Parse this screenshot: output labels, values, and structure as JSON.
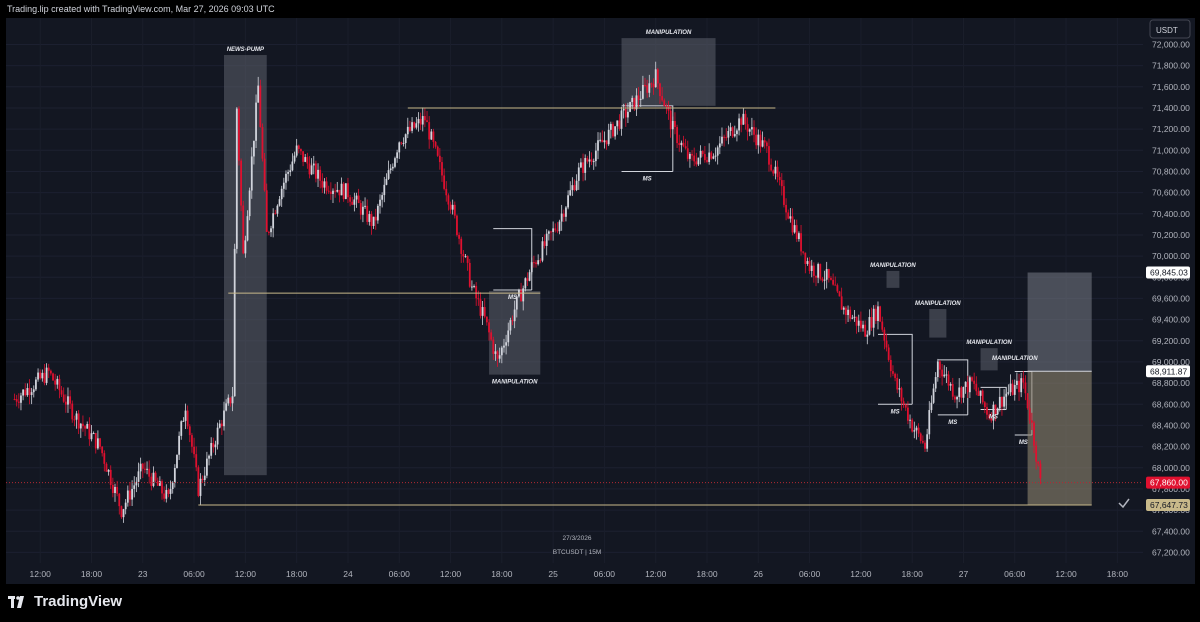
{
  "header": {
    "attribution": "Trading.lip created with TradingView.com, Mar 27, 2026 09:03 UTC"
  },
  "brand": {
    "name": "TradingView"
  },
  "price_scale": {
    "currency": "USDT",
    "ticks": [
      "72,000.00",
      "71,800.00",
      "71,600.00",
      "71,400.00",
      "71,200.00",
      "71,000.00",
      "70,800.00",
      "70,600.00",
      "70,400.00",
      "70,200.00",
      "70,000.00",
      "69,800.00",
      "69,600.00",
      "69,400.00",
      "69,200.00",
      "69,000.00",
      "68,800.00",
      "68,600.00",
      "68,400.00",
      "68,200.00",
      "68,000.00",
      "67,800.00",
      "67,600.00",
      "67,400.00",
      "67,200.00"
    ],
    "badges": [
      {
        "label": "69,845.03",
        "price": 69845.03,
        "style": "plain"
      },
      {
        "label": "68,911.87",
        "price": 68911.87,
        "style": "plain"
      },
      {
        "label": "67,860.00",
        "price": 67860.0,
        "style": "red"
      },
      {
        "label": "67,647.73",
        "price": 67647.73,
        "style": "tan"
      }
    ]
  },
  "time_axis": {
    "labels": [
      "12:00",
      "18:00",
      "23",
      "06:00",
      "12:00",
      "18:00",
      "24",
      "06:00",
      "12:00",
      "18:00",
      "25",
      "06:00",
      "12:00",
      "18:00",
      "26",
      "06:00",
      "12:00",
      "18:00",
      "27",
      "06:00",
      "12:00",
      "18:00"
    ]
  },
  "watermark": {
    "date": "27/3/2026",
    "symbol": "BTCUSDT | 15M"
  },
  "colors": {
    "background": "#131722",
    "up": "#d1d4dc",
    "down": "#e0102f",
    "zone": "#5d606b",
    "level": "#c8b98a",
    "target": "#8f8570"
  },
  "chart_data": {
    "type": "candlestick",
    "symbol": "BTCUSDT",
    "interval": "15M",
    "x_range": [
      "2026-03-22 08:00",
      "2026-03-27 21:00"
    ],
    "ylim": [
      67100,
      72250
    ],
    "close_path": [
      {
        "t": "2026-03-22 09:00",
        "price": 68650
      },
      {
        "t": "2026-03-22 13:00",
        "price": 68900
      },
      {
        "t": "2026-03-22 16:00",
        "price": 68500
      },
      {
        "t": "2026-03-22 19:00",
        "price": 68200
      },
      {
        "t": "2026-03-22 21:30",
        "price": 67600
      },
      {
        "t": "2026-03-23 00:00",
        "price": 68000
      },
      {
        "t": "2026-03-23 03:00",
        "price": 67700
      },
      {
        "t": "2026-03-23 05:00",
        "price": 68600
      },
      {
        "t": "2026-03-23 06:30",
        "price": 67800
      },
      {
        "t": "2026-03-23 09:00",
        "price": 68400
      },
      {
        "t": "2026-03-23 10:30",
        "price": 68700
      },
      {
        "t": "2026-03-23 11:00",
        "price": 71400
      },
      {
        "t": "2026-03-23 11:45",
        "price": 70000
      },
      {
        "t": "2026-03-23 13:30",
        "price": 71600
      },
      {
        "t": "2026-03-23 14:30",
        "price": 70200
      },
      {
        "t": "2026-03-23 16:00",
        "price": 70600
      },
      {
        "t": "2026-03-23 18:00",
        "price": 71000
      },
      {
        "t": "2026-03-23 21:00",
        "price": 70700
      },
      {
        "t": "2026-03-24 00:00",
        "price": 70600
      },
      {
        "t": "2026-03-24 03:00",
        "price": 70300
      },
      {
        "t": "2026-03-24 06:00",
        "price": 71100
      },
      {
        "t": "2026-03-24 09:00",
        "price": 71300
      },
      {
        "t": "2026-03-24 12:00",
        "price": 70500
      },
      {
        "t": "2026-03-24 14:30",
        "price": 69700
      },
      {
        "t": "2026-03-24 16:00",
        "price": 69400
      },
      {
        "t": "2026-03-24 17:30",
        "price": 69000
      },
      {
        "t": "2026-03-24 19:30",
        "price": 69500
      },
      {
        "t": "2026-03-24 21:30",
        "price": 69900
      },
      {
        "t": "2026-03-25 00:30",
        "price": 70300
      },
      {
        "t": "2026-03-25 03:00",
        "price": 70800
      },
      {
        "t": "2026-03-25 06:00",
        "price": 71100
      },
      {
        "t": "2026-03-25 09:00",
        "price": 71400
      },
      {
        "t": "2026-03-25 12:00",
        "price": 71700
      },
      {
        "t": "2026-03-25 14:00",
        "price": 71200
      },
      {
        "t": "2026-03-25 16:00",
        "price": 70900
      },
      {
        "t": "2026-03-25 19:00",
        "price": 71000
      },
      {
        "t": "2026-03-25 22:00",
        "price": 71300
      },
      {
        "t": "2026-03-26 01:00",
        "price": 71000
      },
      {
        "t": "2026-03-26 04:00",
        "price": 70300
      },
      {
        "t": "2026-03-26 06:00",
        "price": 69900
      },
      {
        "t": "2026-03-26 08:00",
        "price": 69800
      },
      {
        "t": "2026-03-26 10:00",
        "price": 69500
      },
      {
        "t": "2026-03-26 12:30",
        "price": 69300
      },
      {
        "t": "2026-03-26 14:00",
        "price": 69500
      },
      {
        "t": "2026-03-26 16:00",
        "price": 68800
      },
      {
        "t": "2026-03-26 18:00",
        "price": 68400
      },
      {
        "t": "2026-03-26 19:30",
        "price": 68200
      },
      {
        "t": "2026-03-26 21:00",
        "price": 69000
      },
      {
        "t": "2026-03-26 23:00",
        "price": 68700
      },
      {
        "t": "2026-03-27 01:00",
        "price": 68800
      },
      {
        "t": "2026-03-27 03:00",
        "price": 68500
      },
      {
        "t": "2026-03-27 05:00",
        "price": 68700
      },
      {
        "t": "2026-03-27 07:00",
        "price": 68800
      },
      {
        "t": "2026-03-27 08:00",
        "price": 68400
      },
      {
        "t": "2026-03-27 09:00",
        "price": 67860
      }
    ],
    "annotations": [
      {
        "label": "NEWS-PUMP",
        "type": "zone",
        "t0": "2026-03-23 09:30",
        "t1": "2026-03-23 14:30",
        "p0": 67930,
        "p1": 71900
      },
      {
        "label": "MANIPULATION",
        "type": "zone",
        "t0": "2026-03-24 16:30",
        "t1": "2026-03-24 22:30",
        "p0": 68880,
        "p1": 69670
      },
      {
        "label": "MS",
        "type": "box",
        "t0": "2026-03-24 17:00",
        "t1": "2026-03-24 21:30",
        "p0": 69680,
        "p1": 70260
      },
      {
        "label": "MANIPULATION",
        "type": "zone",
        "t0": "2026-03-25 08:00",
        "t1": "2026-03-25 19:00",
        "p0": 71420,
        "p1": 72060
      },
      {
        "label": "MS",
        "type": "box",
        "t0": "2026-03-25 08:00",
        "t1": "2026-03-25 14:00",
        "p0": 70800,
        "p1": 71420
      },
      {
        "label": "MANIPULATION",
        "type": "zone",
        "t0": "2026-03-26 15:00",
        "t1": "2026-03-26 16:30",
        "p0": 69700,
        "p1": 69860
      },
      {
        "label": "MS",
        "type": "box",
        "t0": "2026-03-26 14:00",
        "t1": "2026-03-26 18:00",
        "p0": 68600,
        "p1": 69260
      },
      {
        "label": "MANIPULATION",
        "type": "zone",
        "t0": "2026-03-26 20:00",
        "t1": "2026-03-26 22:00",
        "p0": 69230,
        "p1": 69500
      },
      {
        "label": "MS",
        "type": "box",
        "t0": "2026-03-26 21:00",
        "t1": "2026-03-27 00:30",
        "p0": 68500,
        "p1": 69020
      },
      {
        "label": "MANIPULATION",
        "type": "zone",
        "t0": "2026-03-27 02:00",
        "t1": "2026-03-27 04:00",
        "p0": 68920,
        "p1": 69130
      },
      {
        "label": "MS",
        "type": "box",
        "t0": "2026-03-27 02:00",
        "t1": "2026-03-27 05:00",
        "p0": 68550,
        "p1": 68760
      },
      {
        "label": "MANIPULATION",
        "type": "label",
        "t0": "2026-03-27 06:00",
        "t1": "2026-03-27 06:00",
        "p0": 68980,
        "p1": 68980
      },
      {
        "label": "MS",
        "type": "box",
        "t0": "2026-03-27 06:00",
        "t1": "2026-03-27 08:00",
        "p0": 68310,
        "p1": 68910
      }
    ],
    "levels": [
      {
        "price": 71400,
        "t0": "2026-03-24 07:00",
        "t1": "2026-03-26 02:00"
      },
      {
        "price": 69650,
        "t0": "2026-03-23 10:00",
        "t1": "2026-03-24 22:30"
      },
      {
        "price": 67647.73,
        "t0": "2026-03-23 06:30",
        "t1": "2026-03-27 15:00"
      }
    ],
    "position": {
      "entry": 68911.87,
      "target": 67647.73,
      "stop": 69845.03,
      "t0": "2026-03-27 07:30",
      "t1": "2026-03-27 15:00"
    }
  }
}
